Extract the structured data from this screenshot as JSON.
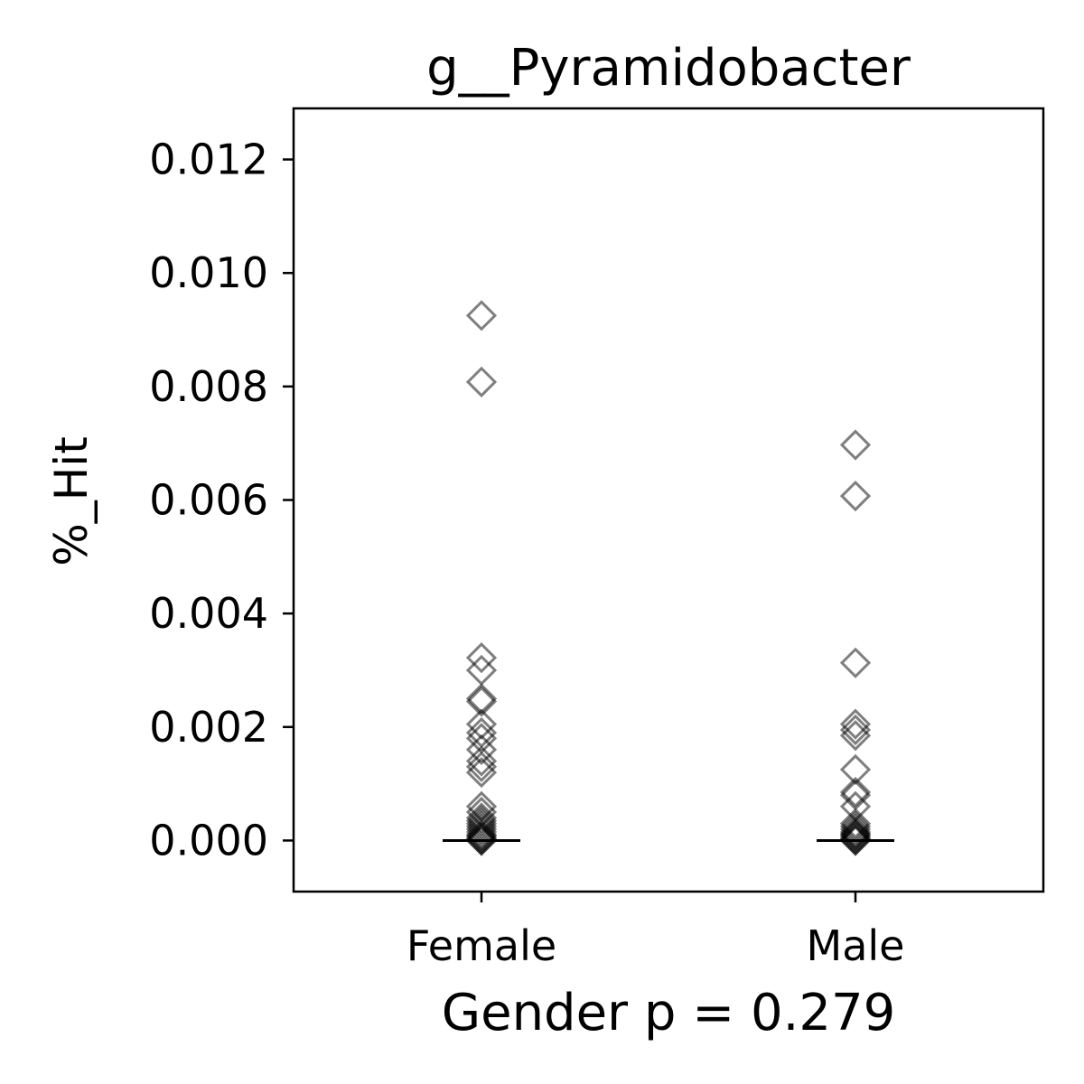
{
  "chart_data": {
    "type": "scatter",
    "title": "g__Pyramidobacter",
    "xlabel": "Gender p = 0.279",
    "ylabel": "%_Hit",
    "categories": [
      "Female",
      "Male"
    ],
    "ylim": [
      -0.0009,
      0.0129
    ],
    "yticks": [
      0.0,
      0.002,
      0.004,
      0.006,
      0.008,
      0.01,
      0.012
    ],
    "ytick_labels": [
      "0.000",
      "0.002",
      "0.004",
      "0.006",
      "0.008",
      "0.010",
      "0.012"
    ],
    "grid": false,
    "marker": "diamond-open",
    "marker_color": "#000000",
    "medians": [
      0.0,
      0.0
    ],
    "series": [
      {
        "values": [
          0.00925,
          0.00808,
          0.00322,
          0.003,
          0.0025,
          0.00245,
          0.00205,
          0.0019,
          0.0018,
          0.0016,
          0.0014,
          0.0013,
          0.0012,
          0.0006,
          0.0005,
          0.0004,
          0.00035,
          0.0003,
          0.00025,
          0.0002,
          0.00015,
          0.0001,
          8e-05,
          5e-05,
          3e-05,
          0.0,
          0.0
        ]
      },
      {
        "values": [
          0.00697,
          0.00607,
          0.00313,
          0.00205,
          0.00195,
          0.00185,
          0.00125,
          0.00085,
          0.0008,
          0.0006,
          0.0003,
          0.00025,
          0.0002,
          0.00015,
          0.00012,
          0.0001,
          8e-05,
          5e-05,
          3e-05,
          0.0,
          0.0
        ]
      }
    ]
  }
}
